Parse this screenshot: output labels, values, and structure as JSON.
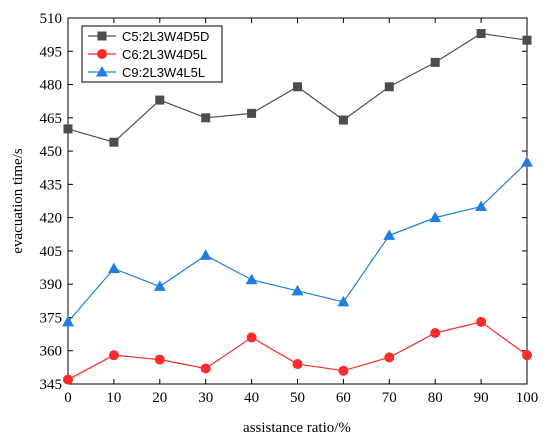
{
  "chart_data": {
    "type": "line",
    "title": "",
    "xlabel": "assistance ratio/%",
    "ylabel": "evacuation time/s",
    "x": [
      0,
      10,
      20,
      30,
      40,
      50,
      60,
      70,
      80,
      90,
      100
    ],
    "xlim": [
      0,
      100
    ],
    "ylim": [
      345,
      510
    ],
    "xticks": [
      "0",
      "10",
      "20",
      "30",
      "40",
      "50",
      "60",
      "70",
      "80",
      "90",
      "100"
    ],
    "yticks": [
      "345",
      "360",
      "375",
      "390",
      "405",
      "420",
      "435",
      "450",
      "465",
      "480",
      "495",
      "510"
    ],
    "grid": false,
    "legend_position": "top-left",
    "series": [
      {
        "name": "C5:2L3W4D5D",
        "marker": "square",
        "color": "#4d4d4d",
        "values": [
          460,
          454,
          473,
          465,
          467,
          479,
          464,
          479,
          490,
          503,
          500
        ]
      },
      {
        "name": "C6:2L3W4D5L",
        "marker": "circle",
        "color": "#ff2a2a",
        "values": [
          347,
          358,
          356,
          352,
          366,
          354,
          351,
          357,
          368,
          373,
          358
        ]
      },
      {
        "name": "C9:2L3W4L5L",
        "marker": "triangle",
        "color": "#1f7fe0",
        "values": [
          373,
          397,
          389,
          403,
          392,
          387,
          382,
          412,
          420,
          425,
          445
        ]
      }
    ]
  }
}
